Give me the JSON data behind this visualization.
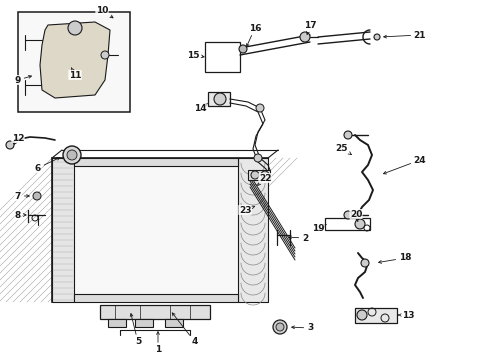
{
  "bg": "#ffffff",
  "lc": "#1a1a1a",
  "figsize": [
    4.89,
    3.6
  ],
  "dpi": 100
}
